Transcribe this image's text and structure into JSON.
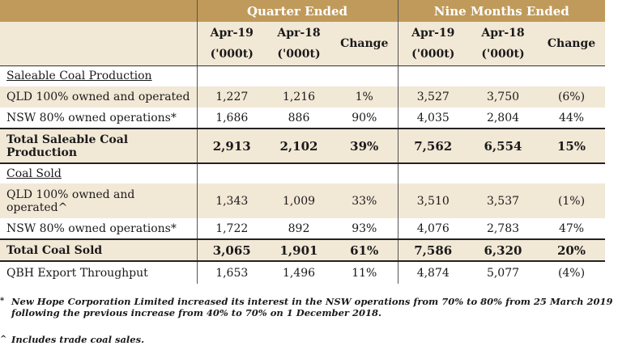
{
  "header": {
    "quarter_group": "Quarter Ended",
    "nine_months_group": "Nine Months Ended",
    "columns": [
      {
        "period": "Apr-19",
        "unit": "('000t)"
      },
      {
        "period": "Apr-18",
        "unit": "('000t)"
      },
      {
        "period": "Change",
        "unit": ""
      },
      {
        "period": "Apr-19",
        "unit": "('000t)"
      },
      {
        "period": "Apr-18",
        "unit": "('000t)"
      },
      {
        "period": "Change",
        "unit": ""
      }
    ]
  },
  "rows": [
    {
      "label": "Saleable Coal Production",
      "values": [
        "",
        "",
        "",
        "",
        "",
        ""
      ]
    },
    {
      "label": "QLD 100% owned and operated",
      "values": [
        "1,227",
        "1,216",
        "1%",
        "3,527",
        "3,750",
        "(6%)"
      ]
    },
    {
      "label": "NSW  80% owned operations*",
      "values": [
        "1,686",
        "886",
        "90%",
        "4,035",
        "2,804",
        "44%"
      ]
    },
    {
      "label": "Total Saleable Coal Production",
      "values": [
        "2,913",
        "2,102",
        "39%",
        "7,562",
        "6,554",
        "15%"
      ]
    },
    {
      "label": "Coal Sold",
      "values": [
        "",
        "",
        "",
        "",
        "",
        ""
      ]
    },
    {
      "label": "QLD 100% owned and operated^",
      "values": [
        "1,343",
        "1,009",
        "33%",
        "3,510",
        "3,537",
        "(1%)"
      ]
    },
    {
      "label": "NSW  80% owned operations*",
      "values": [
        "1,722",
        "892",
        "93%",
        "4,076",
        "2,783",
        "47%"
      ]
    },
    {
      "label": "Total Coal Sold",
      "values": [
        "3,065",
        "1,901",
        "61%",
        "7,586",
        "6,320",
        "20%"
      ]
    },
    {
      "label": "QBH Export Throughput",
      "values": [
        "1,653",
        "1,496",
        "11%",
        "4,874",
        "5,077",
        "(4%)"
      ]
    }
  ],
  "footnotes": [
    {
      "mark": "*",
      "text": "New Hope Corporation Limited increased its interest in the NSW operations from 70% to 80% from 25 March 2019 following the previous increase from 40% to 70% on 1 December 2018."
    },
    {
      "mark": "^",
      "text": "Includes trade coal sales."
    }
  ]
}
